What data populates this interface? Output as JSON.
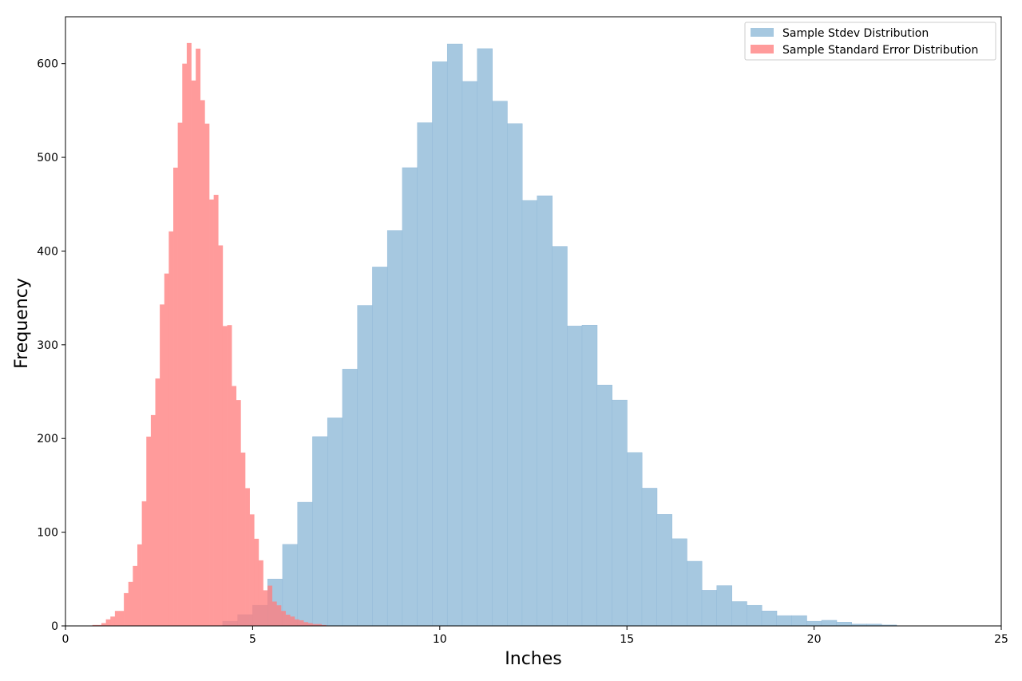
{
  "chart_data": {
    "type": "bar",
    "title": "",
    "xlabel": "Inches",
    "ylabel": "Frequency",
    "xlim": [
      0,
      25
    ],
    "ylim": [
      0,
      650
    ],
    "xticks": [
      0,
      5,
      10,
      15,
      20,
      25
    ],
    "yticks": [
      0,
      100,
      200,
      300,
      400,
      500,
      600
    ],
    "grid": false,
    "legend_position": "top-right",
    "series": [
      {
        "name": "Sample Stdev Distribution",
        "color": "#a6c8e0",
        "edge_color": "#8db6d6",
        "opacity": 1,
        "bin_width": 0.4,
        "bins": [
          [
            4.2,
            5
          ],
          [
            4.6,
            12
          ],
          [
            5.0,
            22
          ],
          [
            5.4,
            50
          ],
          [
            5.8,
            87
          ],
          [
            6.2,
            132
          ],
          [
            6.6,
            202
          ],
          [
            7.0,
            222
          ],
          [
            7.4,
            274
          ],
          [
            7.8,
            342
          ],
          [
            8.2,
            383
          ],
          [
            8.6,
            422
          ],
          [
            9.0,
            489
          ],
          [
            9.4,
            537
          ],
          [
            9.8,
            602
          ],
          [
            10.2,
            621
          ],
          [
            10.6,
            581
          ],
          [
            11.0,
            616
          ],
          [
            11.4,
            560
          ],
          [
            11.8,
            536
          ],
          [
            12.2,
            454
          ],
          [
            12.6,
            459
          ],
          [
            13.0,
            405
          ],
          [
            13.4,
            320
          ],
          [
            13.8,
            321
          ],
          [
            14.2,
            257
          ],
          [
            14.6,
            241
          ],
          [
            15.0,
            185
          ],
          [
            15.4,
            147
          ],
          [
            15.8,
            119
          ],
          [
            16.2,
            93
          ],
          [
            16.6,
            69
          ],
          [
            17.0,
            38
          ],
          [
            17.4,
            43
          ],
          [
            17.8,
            26
          ],
          [
            18.2,
            22
          ],
          [
            18.6,
            16
          ],
          [
            19.0,
            11
          ],
          [
            19.4,
            11
          ],
          [
            19.8,
            5
          ],
          [
            20.2,
            6
          ],
          [
            20.6,
            4
          ],
          [
            21.0,
            2
          ],
          [
            21.4,
            2
          ],
          [
            21.8,
            1
          ]
        ]
      },
      {
        "name": "Sample Standard Error Distribution",
        "color": "#ff7f7f",
        "opacity": 0.78,
        "bin_width": 0.12,
        "bins": [
          [
            0.72,
            1
          ],
          [
            0.84,
            1
          ],
          [
            0.96,
            3
          ],
          [
            1.08,
            7
          ],
          [
            1.2,
            10
          ],
          [
            1.32,
            16
          ],
          [
            1.44,
            16
          ],
          [
            1.56,
            35
          ],
          [
            1.68,
            47
          ],
          [
            1.8,
            64
          ],
          [
            1.92,
            87
          ],
          [
            2.04,
            133
          ],
          [
            2.16,
            202
          ],
          [
            2.28,
            225
          ],
          [
            2.4,
            264
          ],
          [
            2.52,
            343
          ],
          [
            2.64,
            376
          ],
          [
            2.76,
            421
          ],
          [
            2.88,
            489
          ],
          [
            3.0,
            537
          ],
          [
            3.12,
            600
          ],
          [
            3.24,
            622
          ],
          [
            3.36,
            582
          ],
          [
            3.48,
            616
          ],
          [
            3.6,
            561
          ],
          [
            3.72,
            536
          ],
          [
            3.84,
            455
          ],
          [
            3.96,
            460
          ],
          [
            4.08,
            406
          ],
          [
            4.2,
            320
          ],
          [
            4.32,
            321
          ],
          [
            4.44,
            256
          ],
          [
            4.56,
            241
          ],
          [
            4.68,
            185
          ],
          [
            4.8,
            147
          ],
          [
            4.92,
            119
          ],
          [
            5.04,
            93
          ],
          [
            5.16,
            70
          ],
          [
            5.28,
            38
          ],
          [
            5.4,
            43
          ],
          [
            5.52,
            26
          ],
          [
            5.64,
            22
          ],
          [
            5.76,
            16
          ],
          [
            5.88,
            12
          ],
          [
            6.0,
            10
          ],
          [
            6.12,
            7
          ],
          [
            6.24,
            6
          ],
          [
            6.36,
            4
          ],
          [
            6.48,
            3
          ],
          [
            6.6,
            2
          ],
          [
            6.72,
            2
          ],
          [
            6.84,
            1
          ]
        ]
      }
    ]
  }
}
